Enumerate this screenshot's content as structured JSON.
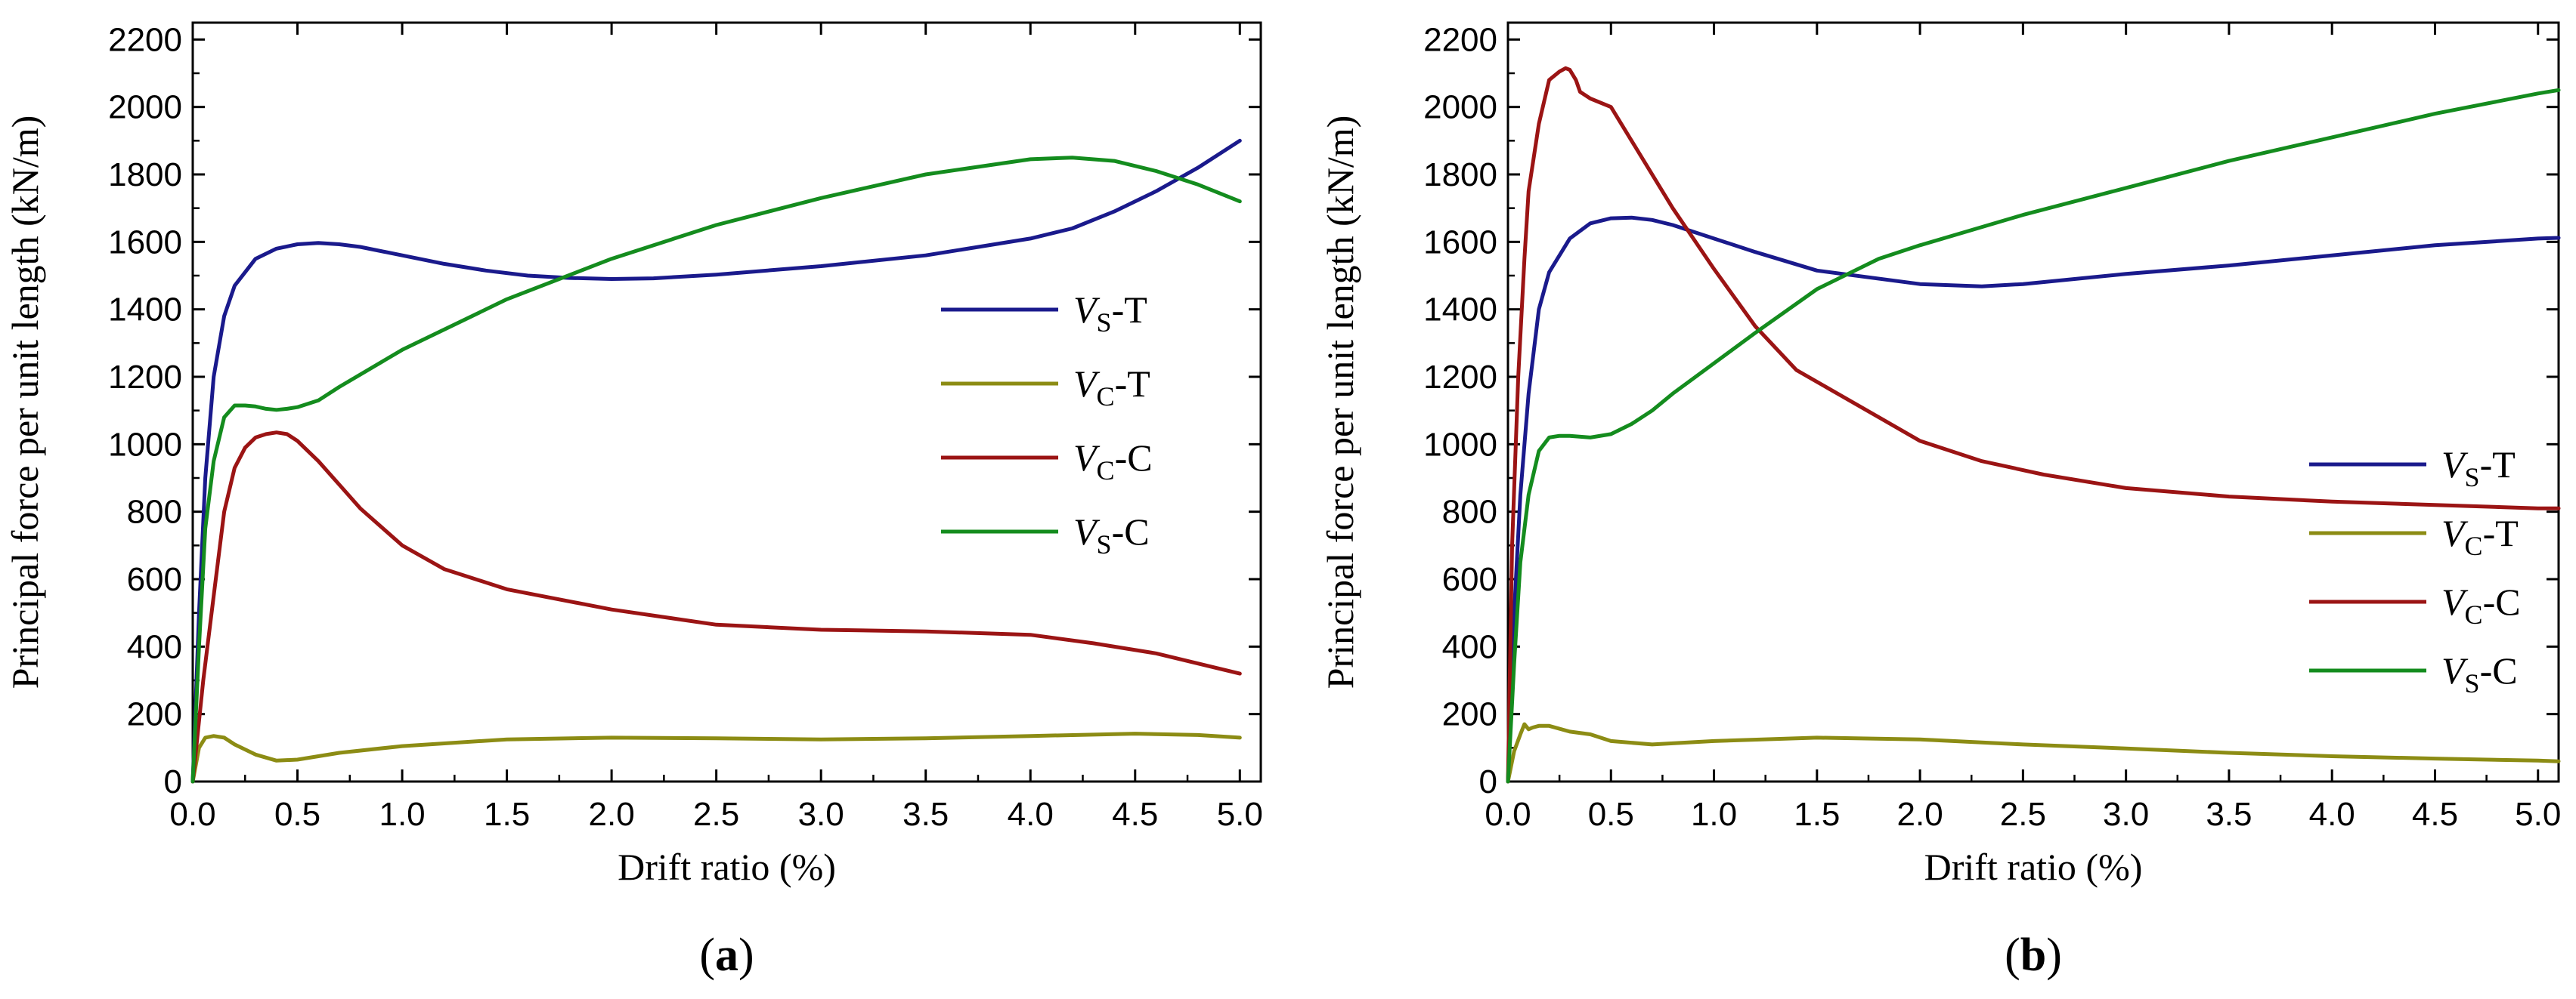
{
  "colors": {
    "Vs-T": "#1a1a8c",
    "Vc-T": "#8c8c14",
    "Vc-C": "#9b1414",
    "Vs-C": "#148c1e"
  },
  "chart_data": [
    {
      "type": "line",
      "panel_label": "a",
      "xlabel": "Drift ratio (%)",
      "ylabel": "Principal force per unit length (kN/m)",
      "xlim": [
        0,
        5.1
      ],
      "ylim": [
        0,
        2250
      ],
      "xticks": [
        "0.0",
        "0.5",
        "1.0",
        "1.5",
        "2.0",
        "2.5",
        "3.0",
        "3.5",
        "4.0",
        "4.5",
        "5.0"
      ],
      "yticks": [
        "0",
        "200",
        "400",
        "600",
        "800",
        "1000",
        "1200",
        "1400",
        "1600",
        "1800",
        "2000",
        "2200"
      ],
      "legend_position": "center-right",
      "series": [
        {
          "key": "Vs-T",
          "name": "V",
          "sub": "S",
          "suffix": "-T",
          "x": [
            0,
            0.03,
            0.06,
            0.1,
            0.15,
            0.2,
            0.3,
            0.4,
            0.5,
            0.6,
            0.7,
            0.8,
            1.0,
            1.2,
            1.4,
            1.6,
            1.8,
            2.0,
            2.2,
            2.5,
            3.0,
            3.5,
            4.0,
            4.2,
            4.4,
            4.6,
            4.8,
            5.0
          ],
          "y": [
            0,
            500,
            900,
            1200,
            1380,
            1470,
            1550,
            1580,
            1593,
            1597,
            1593,
            1585,
            1560,
            1535,
            1515,
            1500,
            1493,
            1490,
            1492,
            1503,
            1528,
            1560,
            1610,
            1640,
            1690,
            1750,
            1820,
            1900
          ]
        },
        {
          "key": "Vc-T",
          "name": "V",
          "sub": "C",
          "suffix": "-T",
          "x": [
            0,
            0.03,
            0.06,
            0.1,
            0.15,
            0.2,
            0.3,
            0.4,
            0.5,
            0.7,
            1.0,
            1.5,
            2.0,
            2.5,
            3.0,
            3.5,
            4.0,
            4.5,
            4.8,
            5.0
          ],
          "y": [
            0,
            100,
            130,
            135,
            130,
            110,
            80,
            62,
            65,
            85,
            105,
            125,
            130,
            128,
            125,
            128,
            135,
            142,
            138,
            130
          ]
        },
        {
          "key": "Vc-C",
          "name": "V",
          "sub": "C",
          "suffix": "-C",
          "x": [
            0,
            0.05,
            0.1,
            0.15,
            0.2,
            0.25,
            0.3,
            0.35,
            0.4,
            0.45,
            0.5,
            0.6,
            0.7,
            0.8,
            1.0,
            1.2,
            1.5,
            2.0,
            2.5,
            3.0,
            3.5,
            4.0,
            4.3,
            4.6,
            5.0
          ],
          "y": [
            0,
            300,
            550,
            800,
            930,
            990,
            1020,
            1030,
            1035,
            1030,
            1010,
            950,
            880,
            810,
            700,
            630,
            570,
            510,
            465,
            450,
            445,
            435,
            410,
            380,
            320
          ]
        },
        {
          "key": "Vs-C",
          "name": "V",
          "sub": "S",
          "suffix": "-C",
          "x": [
            0,
            0.03,
            0.06,
            0.1,
            0.15,
            0.2,
            0.25,
            0.3,
            0.35,
            0.4,
            0.45,
            0.5,
            0.6,
            0.7,
            1.0,
            1.5,
            2.0,
            2.5,
            3.0,
            3.5,
            4.0,
            4.2,
            4.4,
            4.6,
            4.8,
            5.0
          ],
          "y": [
            0,
            400,
            750,
            950,
            1080,
            1115,
            1115,
            1112,
            1105,
            1102,
            1105,
            1110,
            1130,
            1170,
            1280,
            1430,
            1550,
            1650,
            1730,
            1800,
            1845,
            1850,
            1840,
            1810,
            1770,
            1720
          ]
        }
      ]
    },
    {
      "type": "line",
      "panel_label": "b",
      "xlabel": "Drift ratio (%)",
      "ylabel": "Principal force per unit length (kN/m)",
      "xlim": [
        0,
        5.1
      ],
      "ylim": [
        0,
        2250
      ],
      "xticks": [
        "0.0",
        "0.5",
        "1.0",
        "1.5",
        "2.0",
        "2.5",
        "3.0",
        "3.5",
        "4.0",
        "4.5",
        "5.0"
      ],
      "yticks": [
        "0",
        "200",
        "400",
        "600",
        "800",
        "1000",
        "1200",
        "1400",
        "1600",
        "1800",
        "2000",
        "2200"
      ],
      "legend_position": "bottom-right",
      "series": [
        {
          "key": "Vs-T",
          "name": "V",
          "sub": "S",
          "suffix": "-T",
          "x": [
            0,
            0.03,
            0.06,
            0.1,
            0.15,
            0.2,
            0.3,
            0.4,
            0.5,
            0.6,
            0.7,
            0.8,
            1.0,
            1.2,
            1.5,
            2.0,
            2.3,
            2.5,
            3.0,
            3.5,
            4.0,
            4.5,
            5.0,
            5.1
          ],
          "y": [
            0,
            500,
            850,
            1150,
            1400,
            1510,
            1610,
            1655,
            1670,
            1672,
            1665,
            1650,
            1610,
            1570,
            1515,
            1475,
            1468,
            1475,
            1505,
            1530,
            1560,
            1590,
            1610,
            1612
          ]
        },
        {
          "key": "Vc-T",
          "name": "V",
          "sub": "C",
          "suffix": "-T",
          "x": [
            0,
            0.03,
            0.06,
            0.08,
            0.1,
            0.12,
            0.15,
            0.2,
            0.3,
            0.4,
            0.5,
            0.7,
            1.0,
            1.5,
            2.0,
            2.5,
            3.0,
            3.5,
            4.0,
            4.5,
            5.0,
            5.1
          ],
          "y": [
            0,
            90,
            140,
            170,
            155,
            160,
            165,
            165,
            148,
            140,
            120,
            110,
            120,
            130,
            125,
            110,
            98,
            85,
            75,
            68,
            62,
            60
          ]
        },
        {
          "key": "Vc-C",
          "name": "V",
          "sub": "C",
          "suffix": "-C",
          "x": [
            0,
            0.02,
            0.05,
            0.08,
            0.1,
            0.15,
            0.2,
            0.25,
            0.28,
            0.3,
            0.33,
            0.35,
            0.4,
            0.5,
            0.6,
            0.8,
            1.0,
            1.2,
            1.4,
            1.6,
            1.8,
            2.0,
            2.3,
            2.6,
            3.0,
            3.5,
            4.0,
            4.5,
            5.0,
            5.1
          ],
          "y": [
            0,
            700,
            1200,
            1550,
            1750,
            1950,
            2080,
            2105,
            2115,
            2110,
            2080,
            2045,
            2025,
            2000,
            1900,
            1700,
            1520,
            1350,
            1220,
            1150,
            1080,
            1010,
            950,
            910,
            870,
            845,
            830,
            820,
            810,
            810
          ]
        },
        {
          "key": "Vs-C",
          "name": "V",
          "sub": "S",
          "suffix": "-C",
          "x": [
            0,
            0.03,
            0.06,
            0.1,
            0.15,
            0.2,
            0.25,
            0.3,
            0.4,
            0.5,
            0.6,
            0.7,
            0.8,
            1.0,
            1.2,
            1.5,
            1.8,
            2.0,
            2.5,
            3.0,
            3.5,
            4.0,
            4.5,
            5.0,
            5.1
          ],
          "y": [
            0,
            350,
            650,
            850,
            980,
            1020,
            1025,
            1025,
            1020,
            1030,
            1060,
            1100,
            1150,
            1240,
            1330,
            1460,
            1550,
            1590,
            1680,
            1760,
            1840,
            1910,
            1980,
            2040,
            2050
          ]
        }
      ]
    }
  ]
}
